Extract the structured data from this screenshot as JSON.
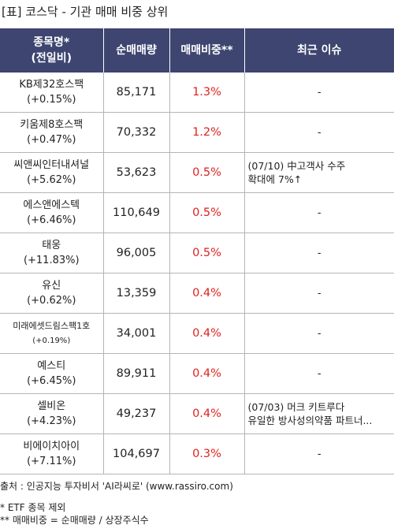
{
  "title": "[표] 코스닥 - 기관 매매 비중 상위",
  "headers": {
    "name": "종목명*\n(전일비)",
    "volume": "순매매량",
    "ratio": "매매비중**",
    "issue": "최근 이슈"
  },
  "rows": [
    {
      "name": "KB제32호스팩",
      "change": "(+0.15%)",
      "volume": "85,171",
      "ratio": "1.3%",
      "issue": "-"
    },
    {
      "name": "키움제8호스팩",
      "change": "(+0.47%)",
      "volume": "70,332",
      "ratio": "1.2%",
      "issue": "-"
    },
    {
      "name": "씨앤씨인터내셔널",
      "change": "(+5.62%)",
      "volume": "53,623",
      "ratio": "0.5%",
      "issue": "(07/10) 中고객사 수주\n확대에 7%↑"
    },
    {
      "name": "에스앤에스텍",
      "change": "(+6.46%)",
      "volume": "110,649",
      "ratio": "0.5%",
      "issue": "-"
    },
    {
      "name": "태웅",
      "change": "(+11.83%)",
      "volume": "96,005",
      "ratio": "0.5%",
      "issue": "-"
    },
    {
      "name": "유신",
      "change": "(+0.62%)",
      "volume": "13,359",
      "ratio": "0.4%",
      "issue": "-"
    },
    {
      "name": "미래에셋드림스팩1호",
      "change": "(+0.19%)",
      "volume": "34,001",
      "ratio": "0.4%",
      "issue": "-"
    },
    {
      "name": "예스티",
      "change": "(+6.45%)",
      "volume": "89,911",
      "ratio": "0.4%",
      "issue": "-"
    },
    {
      "name": "셀비온",
      "change": "(+4.23%)",
      "volume": "49,237",
      "ratio": "0.4%",
      "issue": "(07/03) 머크 키트루다\n유일한 방사성의약품 파트너..."
    },
    {
      "name": "비에이치아이",
      "change": "(+7.11%)",
      "volume": "104,697",
      "ratio": "0.3%",
      "issue": "-"
    }
  ],
  "footer": {
    "source": "출처 : 인공지능 투자비서 'AI라씨로' (www.rassiro.com)",
    "note1": "* ETF 종목 제외",
    "note2": "** 매매비중 = 순매매량 / 상장주식수"
  }
}
